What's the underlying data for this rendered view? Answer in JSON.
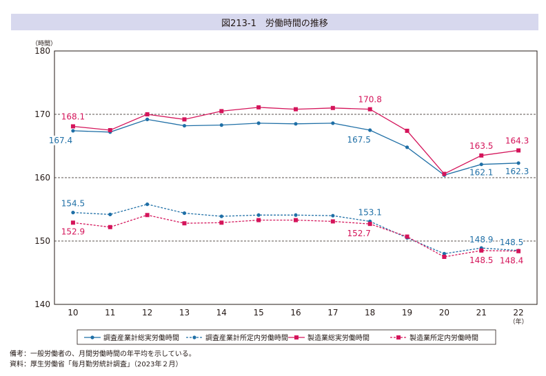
{
  "figure": {
    "title": "図213-1　労働時間の推移",
    "notes": [
      "備考：一般労働者の、月間労働時間の年平均を示している。",
      "資料：厚生労働省「毎月勤労統計調査」（2023年２月）"
    ]
  },
  "chart_data": {
    "type": "line",
    "title": "図213-1　労働時間の推移",
    "ylabel": "（時間）",
    "xlabel": "（年）",
    "ylim": [
      140,
      180
    ],
    "yticks": [
      140,
      150,
      160,
      170,
      180
    ],
    "grid": "dashed horizontal lines at 150, 160, 170",
    "legend_position": "bottom",
    "categories": [
      "10",
      "11",
      "12",
      "13",
      "14",
      "15",
      "16",
      "17",
      "18",
      "19",
      "20",
      "21",
      "22"
    ],
    "series": [
      {
        "name": "調査産業計総実労働時間",
        "color": "#1f6fa6",
        "dashed": false,
        "marker": "circle",
        "values": [
          167.4,
          167.2,
          169.2,
          168.2,
          168.3,
          168.6,
          168.5,
          168.6,
          167.5,
          164.8,
          160.4,
          162.1,
          162.3
        ]
      },
      {
        "name": "調査産業計所定内労働時間",
        "color": "#1f6fa6",
        "dashed": true,
        "marker": "circle",
        "values": [
          154.5,
          154.2,
          155.8,
          154.4,
          153.9,
          154.1,
          154.1,
          154.0,
          153.1,
          150.5,
          148.0,
          148.9,
          148.5
        ]
      },
      {
        "name": "製造業総実労働時間",
        "color": "#d4145a",
        "dashed": false,
        "marker": "square",
        "values": [
          168.1,
          167.5,
          170.0,
          169.2,
          170.5,
          171.1,
          170.8,
          171.0,
          170.8,
          167.4,
          160.6,
          163.5,
          164.3
        ]
      },
      {
        "name": "製造業所定内労働時間",
        "color": "#d4145a",
        "dashed": true,
        "marker": "square",
        "values": [
          152.9,
          152.2,
          154.1,
          152.8,
          152.9,
          153.3,
          153.3,
          153.1,
          152.7,
          150.7,
          147.5,
          148.5,
          148.4
        ]
      }
    ],
    "annotations": [
      {
        "text": "168.1",
        "series": 2,
        "index": 0
      },
      {
        "text": "167.4",
        "series": 0,
        "index": 0
      },
      {
        "text": "170.8",
        "series": 2,
        "index": 8
      },
      {
        "text": "167.5",
        "series": 0,
        "index": 8
      },
      {
        "text": "163.5",
        "series": 2,
        "index": 11
      },
      {
        "text": "164.3",
        "series": 2,
        "index": 12
      },
      {
        "text": "162.1",
        "series": 0,
        "index": 11
      },
      {
        "text": "162.3",
        "series": 0,
        "index": 12
      },
      {
        "text": "154.5",
        "series": 1,
        "index": 0
      },
      {
        "text": "152.9",
        "series": 3,
        "index": 0
      },
      {
        "text": "153.1",
        "series": 1,
        "index": 8
      },
      {
        "text": "152.7",
        "series": 3,
        "index": 8
      },
      {
        "text": "148.9",
        "series": 1,
        "index": 11
      },
      {
        "text": "148.5",
        "series": 1,
        "index": 12
      },
      {
        "text": "148.5",
        "series": 3,
        "index": 11
      },
      {
        "text": "148.4",
        "series": 3,
        "index": 12
      }
    ]
  }
}
